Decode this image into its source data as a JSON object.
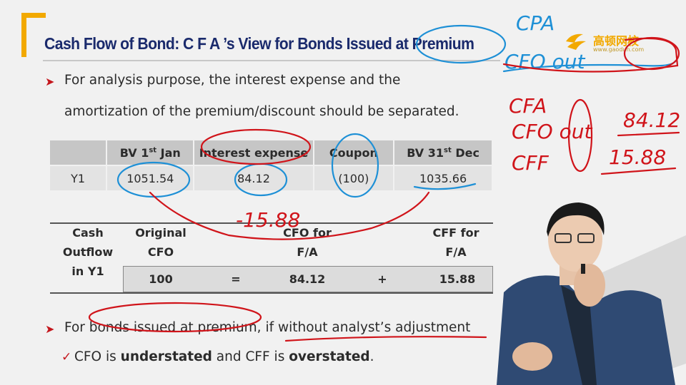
{
  "slide": {
    "title": "Cash Flow of Bond: C F A ’s View for Bonds Issued at Premium",
    "logo_text": "高顿网校",
    "logo_url": "www.gaodun.com",
    "bullet1_line1": "For analysis purpose, the interest expense and the",
    "bullet1_line2": "amortization of the premium/discount should be separated.",
    "table1": {
      "headers": [
        "",
        "BV 1st Jan",
        "Interest expense",
        "Coupon",
        "BV 31st Dec"
      ],
      "row": [
        "Y1",
        "1051.54",
        "84.12",
        "(100)",
        "1035.66"
      ]
    },
    "table2": {
      "row_label_1": "Cash",
      "row_label_2": "Outflow",
      "row_label_3": "in Y1",
      "col1_l1": "Original",
      "col1_l2": "CFO",
      "col2_l1": "CFO for",
      "col2_l2": "F/A",
      "col3_l1": "CFF for",
      "col3_l2": "F/A",
      "v1": "100",
      "op1": "=",
      "v2": "84.12",
      "op2": "+",
      "v3": "15.88"
    },
    "bullet2": "For bonds issued at premium, if without analyst’s adjustment",
    "sub_pre": "CFO is ",
    "sub_b1": "understated",
    "sub_mid": " and CFF is ",
    "sub_b2": "overstated",
    "sub_end": "."
  },
  "annotations": {
    "a1": "CPA",
    "a2": "CFO out",
    "a3": "CFA",
    "a4": "CFO out",
    "a5": "84.12",
    "a6": "CFF",
    "a7": "15.88",
    "a8": "-15.88"
  },
  "colors": {
    "title": "#1a2a6c",
    "accent": "#f2a900",
    "bullet": "#c4161c",
    "ink_red": "#d0141a",
    "ink_blue": "#1e90d6"
  }
}
